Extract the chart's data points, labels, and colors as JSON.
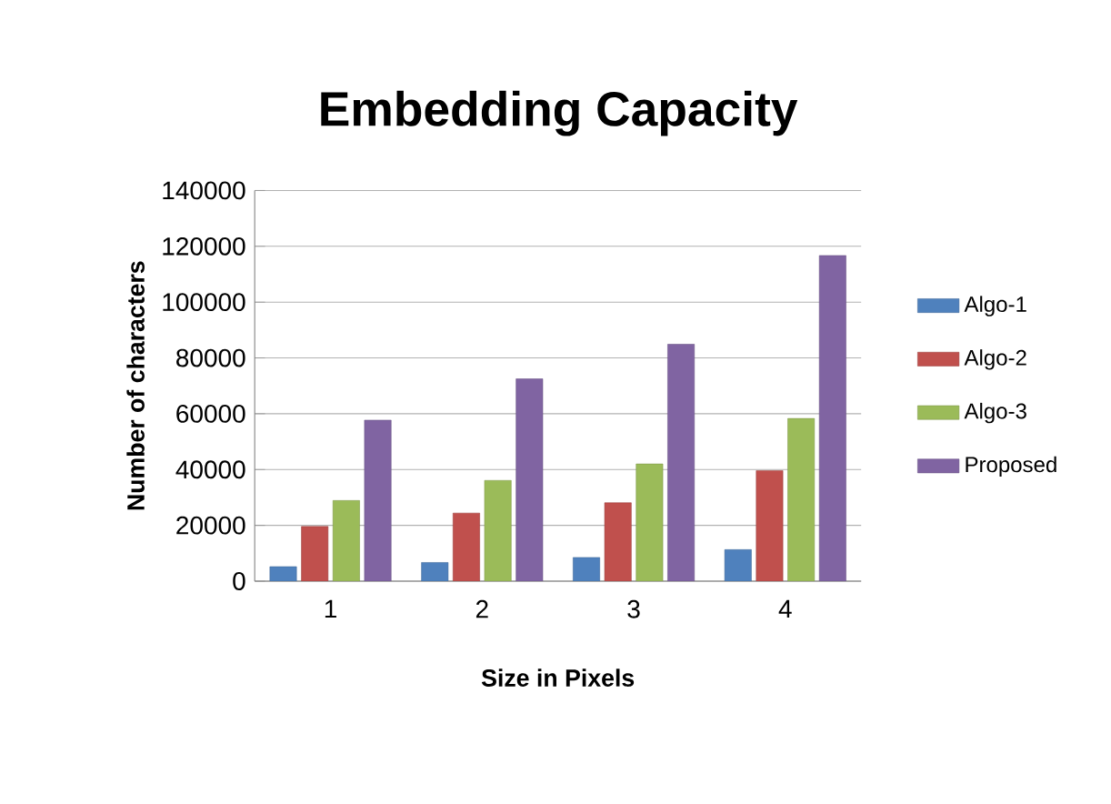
{
  "chart_data": {
    "type": "bar",
    "title": "Embedding Capacity",
    "xlabel": "Size in Pixels",
    "ylabel": "Number of characters",
    "categories": [
      "1",
      "2",
      "3",
      "4"
    ],
    "series": [
      {
        "name": "Algo-1",
        "color": "#4f81bd",
        "values": [
          5200,
          6700,
          8500,
          11300
        ]
      },
      {
        "name": "Algo-2",
        "color": "#c0504d",
        "values": [
          19600,
          24400,
          28100,
          39600
        ]
      },
      {
        "name": "Algo-3",
        "color": "#9bbb59",
        "values": [
          28900,
          36100,
          42000,
          58300
        ]
      },
      {
        "name": "Proposed",
        "color": "#8064a2",
        "values": [
          57700,
          72500,
          84900,
          116700
        ]
      }
    ],
    "ylim": [
      0,
      140000
    ],
    "yticks": [
      0,
      20000,
      40000,
      60000,
      80000,
      100000,
      120000,
      140000
    ],
    "grid": "y",
    "legend": "right"
  }
}
